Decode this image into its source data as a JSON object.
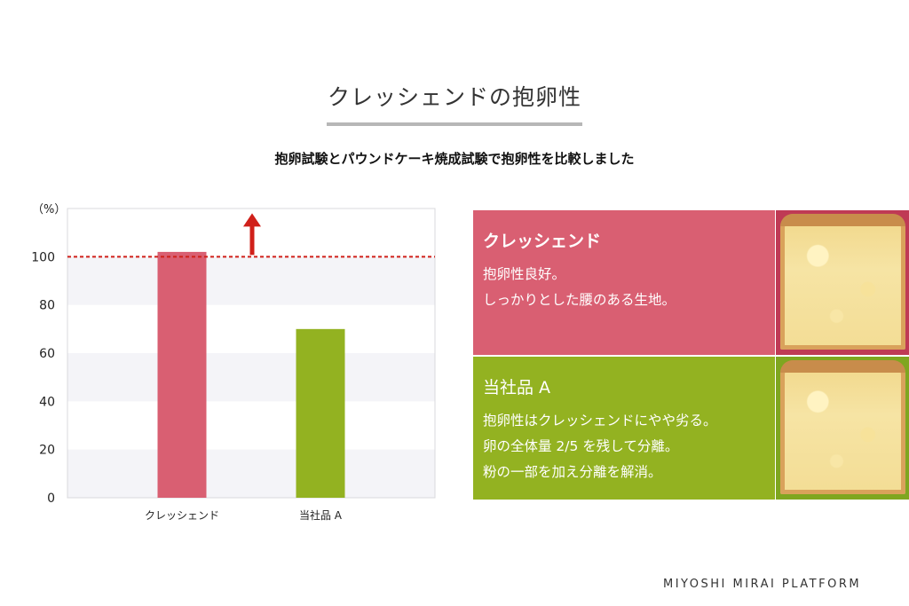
{
  "slide": {
    "title": "クレッシェンドの抱卵性",
    "subtitle": "抱卵試験とパウンドケーキ焼成試験で抱卵性を比較しました",
    "footer": "MIYOSHI MIRAI PLATFORM"
  },
  "chart_data": {
    "type": "bar",
    "unit_label": "（%）",
    "categories": [
      "クレッシェンド",
      "当社品 A"
    ],
    "values": [
      102,
      70
    ],
    "ylim": [
      0,
      120
    ],
    "yticks": [
      0,
      20,
      40,
      60,
      80,
      100
    ],
    "reference_line": 100,
    "colors": [
      "#d95f72",
      "#93b221"
    ],
    "grid": "alternating bands",
    "reference_color": "#d0201a"
  },
  "panels": [
    {
      "heading": "クレッシェンド",
      "lines": [
        "抱卵性良好。",
        "しっかりとした腰のある生地。"
      ],
      "color": "#d95f72",
      "photo_icon": "cake-crumb-photo"
    },
    {
      "heading": "当社品 A",
      "lines": [
        "抱卵性はクレッシェンドにやや劣る。",
        "卵の全体量 2/5 を残して分離。",
        "粉の一部を加え分離を解消。"
      ],
      "color": "#93b221",
      "photo_icon": "cake-crumb-photo"
    }
  ]
}
